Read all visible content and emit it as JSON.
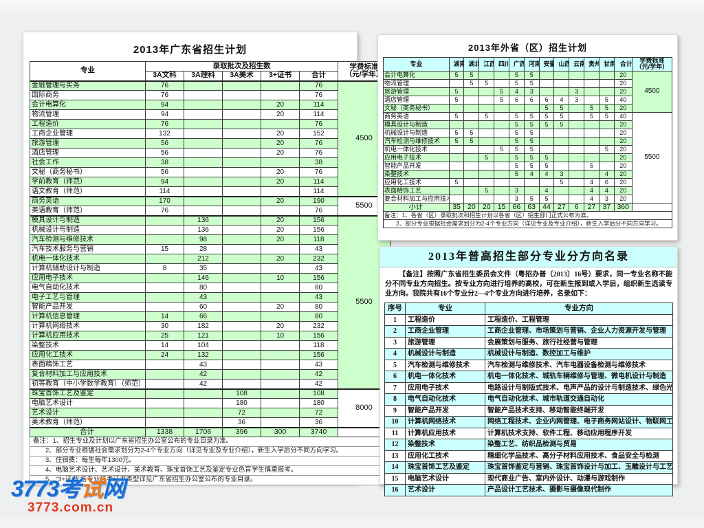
{
  "watermark": {
    "brand_prefix": "3773考",
    "brand_dot": "试",
    "brand_suffix": "网",
    "domain": "3773.com.cn"
  },
  "colors": {
    "row_green": "#ccffcc",
    "header_cyan": "#ccffff",
    "watermark_blue": "#1c6cd0",
    "watermark_red": "#e2391f"
  },
  "guangdong_table": {
    "title": "2013年广东省招生计划",
    "header": {
      "major": "专业",
      "batch_group": "录取批次及招生数",
      "batch_cols": [
        "3A文科",
        "3A理科",
        "3A美术",
        "3+证书",
        "合计"
      ],
      "fee_line1": "学费标准",
      "fee_line2": "（元/学年）"
    },
    "rows": [
      {
        "major": "金融管理与实务",
        "values": [
          "76",
          "",
          "",
          "",
          "76"
        ]
      },
      {
        "major": "国际商务",
        "values": [
          "76",
          "",
          "",
          "",
          "76"
        ]
      },
      {
        "major": "会计电算化",
        "values": [
          "94",
          "",
          "",
          "20",
          "114"
        ]
      },
      {
        "major": "物流管理",
        "values": [
          "94",
          "",
          "",
          "20",
          "114"
        ]
      },
      {
        "major": "工程造价",
        "values": [
          "76",
          "",
          "",
          "",
          "76"
        ]
      },
      {
        "major": "工商企业管理",
        "values": [
          "132",
          "",
          "",
          "20",
          "152"
        ]
      },
      {
        "major": "旅游管理",
        "values": [
          "56",
          "",
          "",
          "20",
          "76"
        ]
      },
      {
        "major": "酒店管理",
        "values": [
          "56",
          "",
          "",
          "20",
          "76"
        ]
      },
      {
        "major": "社会工作",
        "values": [
          "38",
          "",
          "",
          "",
          "38"
        ]
      },
      {
        "major": "文秘（商务秘书）",
        "values": [
          "56",
          "",
          "",
          "20",
          "76"
        ]
      },
      {
        "major": "学前教育（师范）",
        "values": [
          "94",
          "",
          "",
          "20",
          "114"
        ]
      },
      {
        "major": "语文教育（师范）",
        "values": [
          "114",
          "",
          "",
          "",
          "114"
        ]
      },
      {
        "major": "商务英语",
        "values": [
          "170",
          "",
          "",
          "20",
          "190"
        ]
      },
      {
        "major": "英语教育（师范）",
        "values": [
          "76",
          "",
          "",
          "",
          "76"
        ]
      },
      {
        "major": "模具设计与制造",
        "values": [
          "",
          "136",
          "",
          "20",
          "156"
        ]
      },
      {
        "major": "机械设计与制造",
        "values": [
          "",
          "136",
          "",
          "20",
          "156"
        ]
      },
      {
        "major": "汽车检测与维修技术",
        "values": [
          "",
          "98",
          "",
          "20",
          "118"
        ]
      },
      {
        "major": "汽车技术服务与营销",
        "values": [
          "15",
          "28",
          "",
          "",
          "43"
        ]
      },
      {
        "major": "机电一体化技术",
        "values": [
          "",
          "212",
          "",
          "20",
          "232"
        ]
      },
      {
        "major": "计算机辅助设计与制造",
        "values": [
          "8",
          "35",
          "",
          "",
          "43"
        ]
      },
      {
        "major": "应用电子技术",
        "values": [
          "",
          "146",
          "",
          "10",
          "156"
        ]
      },
      {
        "major": "电气自动化技术",
        "values": [
          "",
          "80",
          "",
          "",
          "80"
        ]
      },
      {
        "major": "电子工艺与管理",
        "values": [
          "",
          "43",
          "",
          "",
          "43"
        ]
      },
      {
        "major": "智能产品开发",
        "values": [
          "",
          "60",
          "",
          "20",
          "80"
        ]
      },
      {
        "major": "计算机信息管理",
        "values": [
          "14",
          "66",
          "",
          "",
          "80"
        ]
      },
      {
        "major": "计算机网络技术",
        "values": [
          "30",
          "182",
          "",
          "20",
          "232"
        ]
      },
      {
        "major": "计算机应用技术",
        "values": [
          "25",
          "121",
          "",
          "10",
          "156"
        ]
      },
      {
        "major": "染整技术",
        "values": [
          "14",
          "104",
          "",
          "",
          "118"
        ]
      },
      {
        "major": "应用化工技术",
        "values": [
          "24",
          "132",
          "",
          "",
          "156"
        ]
      },
      {
        "major": "表面精饰工艺",
        "values": [
          "",
          "43",
          "",
          "",
          "43"
        ]
      },
      {
        "major": "复合材料加工与应用技术",
        "values": [
          "",
          "42",
          "",
          "",
          "42"
        ]
      },
      {
        "major": "初等教育（中小学数学教育）（师范）",
        "values": [
          "",
          "42",
          "",
          "",
          "42"
        ]
      },
      {
        "major": "珠宝首饰工艺及鉴定",
        "values": [
          "",
          "",
          "108",
          "",
          "108"
        ]
      },
      {
        "major": "电脑艺术设计",
        "values": [
          "",
          "",
          "180",
          "",
          "180"
        ]
      },
      {
        "major": "艺术设计",
        "values": [
          "",
          "",
          "72",
          "",
          "72"
        ]
      },
      {
        "major": "美术教育（师范）",
        "values": [
          "",
          "",
          "36",
          "",
          "36"
        ]
      }
    ],
    "fee_groups": [
      {
        "label": "4500",
        "start": 0,
        "count": 12
      },
      {
        "label": "5500",
        "start": 12,
        "count": 2
      },
      {
        "label": "5500",
        "start": 14,
        "count": 18
      },
      {
        "label": "8000",
        "start": 32,
        "count": 4
      }
    ],
    "total": {
      "label": "合计",
      "values": [
        "1338",
        "1706",
        "396",
        "300",
        "3740"
      ]
    },
    "notes": [
      "备注：1、招生专业及计划以广东省招生办公室公布的专业目录为准。",
      "2、部分专业根据社会需求划分为2-4个专业方向（详见专业及专业介绍），新生入学后分不同方向学习。",
      "3、住宿费：每生每年1300元。",
      "4、电脑艺术设计、艺术设计、美术教育、珠宝首饰工艺及鉴定专业色盲学生慎重报考。",
      "5、“3+证书”各专业选考证书类型详见广东省招生办公室公布的专业目录。"
    ]
  },
  "province_table": {
    "title": "2013年外省（区）招生计划",
    "header": {
      "major": "专业",
      "provinces": [
        "湖南",
        "湖北",
        "江西",
        "四川",
        "广西",
        "河南",
        "安徽",
        "山西",
        "云南",
        "贵州",
        "甘肃"
      ],
      "total_label": "合计",
      "fee_line1": "学费标准",
      "fee_line2": "（元/学年）"
    },
    "rows": [
      {
        "major": "会计电算化",
        "values": [
          "5",
          "5",
          "",
          "",
          "5",
          "5",
          "",
          "",
          "",
          "",
          "",
          "20"
        ]
      },
      {
        "major": "物流管理",
        "values": [
          "",
          "5",
          "5",
          "",
          "5",
          "5",
          "",
          "",
          "",
          "",
          "",
          "20"
        ]
      },
      {
        "major": "旅游管理",
        "values": [
          "5",
          "",
          "",
          "5",
          "4",
          "3",
          "",
          "",
          "3",
          "",
          "",
          "20"
        ]
      },
      {
        "major": "酒店管理",
        "values": [
          "5",
          "",
          "",
          "5",
          "6",
          "6",
          "6",
          "4",
          "3",
          "",
          "5",
          "40"
        ]
      },
      {
        "major": "文秘（商务秘书）",
        "values": [
          "",
          "",
          "",
          "",
          "",
          "",
          "5",
          "5",
          "",
          "5",
          "5",
          "20"
        ]
      },
      {
        "major": "商务英语",
        "values": [
          "5",
          "",
          "5",
          "",
          "5",
          "5",
          "5",
          "5",
          "",
          "5",
          "5",
          "40"
        ]
      },
      {
        "major": "模具设计与制造",
        "values": [
          "",
          "",
          "",
          "",
          "5",
          "5",
          "5",
          "5",
          "",
          "",
          "",
          "20"
        ]
      },
      {
        "major": "机械设计与制造",
        "values": [
          "5",
          "5",
          "",
          "",
          "5",
          "5",
          "",
          "",
          "",
          "",
          "",
          "20"
        ]
      },
      {
        "major": "汽车检测与维修技术",
        "values": [
          "5",
          "5",
          "",
          "",
          "5",
          "5",
          "",
          "",
          "",
          "",
          "",
          "20"
        ]
      },
      {
        "major": "机电一体化技术",
        "values": [
          "",
          "",
          "",
          "5",
          "5",
          "5",
          "",
          "",
          "",
          "",
          "5",
          "20"
        ]
      },
      {
        "major": "应用电子技术",
        "values": [
          "",
          "",
          "5",
          "",
          "5",
          "5",
          "5",
          "",
          "",
          "",
          "",
          "20"
        ]
      },
      {
        "major": "智能产品开发",
        "values": [
          "",
          "",
          "",
          "",
          "5",
          "5",
          "5",
          "",
          "",
          "5",
          "",
          "20"
        ]
      },
      {
        "major": "染整技术",
        "values": [
          "",
          "",
          "",
          "",
          "5",
          "4",
          "4",
          "3",
          "",
          "",
          "4",
          "20"
        ]
      },
      {
        "major": "应用化工技术",
        "values": [
          "5",
          "",
          "",
          "",
          "",
          "",
          "",
          "5",
          "",
          "4",
          "6",
          "20"
        ]
      },
      {
        "major": "表面精饰工艺",
        "values": [
          "",
          "",
          "5",
          "",
          "3",
          "",
          "4",
          "",
          "",
          "4",
          "4",
          "20"
        ]
      },
      {
        "major": "复合材料加工与应用技术",
        "values": [
          "",
          "",
          "",
          "",
          "3",
          "5",
          "5",
          "",
          "",
          "4",
          "3",
          "20"
        ]
      }
    ],
    "fee_groups": [
      {
        "label": "4500",
        "start": 0,
        "count": 5
      },
      {
        "label": "5500",
        "start": 5,
        "count": 11
      }
    ],
    "total": {
      "label": "小计",
      "values": [
        "35",
        "20",
        "20",
        "15",
        "66",
        "63",
        "44",
        "27",
        "6",
        "27",
        "37",
        "360"
      ]
    },
    "notes": [
      "备注：1、各省（区）录取批次和招生计划以各省（区）招生部门正式公布为准。",
      "2、部分专业根据社会需求划分为2-4个专业方向（详见专业及专业介绍），新生入学后分不同方向学习。"
    ]
  },
  "direction_table": {
    "title": "2013年普高招生部分专业分方向名录",
    "note": "【备注】按照广东省招生委员会文件（粤招办普〔2013〕16号）要求，同一专业名称不能分不同专业方向招生。按专业方向进行培养的高校，可在新生报到或入学后，组织新生选读专业方向。我院共有16个专业分2—4个专业方向进行培养，名录如下：",
    "header": {
      "index": "序号",
      "major": "专业",
      "directions": "专业方向"
    },
    "rows": [
      {
        "index": "1",
        "major": "工程造价",
        "directions": "工程造价、工程管理"
      },
      {
        "index": "2",
        "major": "工商企业管理",
        "directions": "工商企业管理、市场策划与营销、企业人力资源开发与管理"
      },
      {
        "index": "3",
        "major": "旅游管理",
        "directions": "会展策划与服务、旅行社经营与管理"
      },
      {
        "index": "4",
        "major": "机械设计与制造",
        "directions": "机械设计与制造、数控加工与维护"
      },
      {
        "index": "5",
        "major": "汽车检测与维修技术",
        "directions": "汽车检测与维修技术、汽车电器设备检测与维修技术"
      },
      {
        "index": "6",
        "major": "机电一体化技术",
        "directions": "机电一体化技术、城轨车辆维修与管理、微电机设计与制造"
      },
      {
        "index": "7",
        "major": "应用电子技术",
        "directions": "电路设计与制版式技术、电声产品的设计与制造技术、绿色光源LED"
      },
      {
        "index": "8",
        "major": "电气自动化技术",
        "directions": "电气自动化技术、城市轨道交通自动化"
      },
      {
        "index": "9",
        "major": "智能产品开发",
        "directions": "智能产品技术支持、移动智能终端开发"
      },
      {
        "index": "10",
        "major": "计算机网络技术",
        "directions": "网络工程技术、企业内网管理、电子商务网站设计、物联网工程"
      },
      {
        "index": "11",
        "major": "计算机应用技术",
        "directions": "计算机技术支持、软件工程、移动应用程序开发"
      },
      {
        "index": "12",
        "major": "染整技术",
        "directions": "染整工艺、纺织品检测与贸易"
      },
      {
        "index": "13",
        "major": "应用化工技术",
        "directions": "精细化学品技术、高分子材料应用技术、食品安全与检测"
      },
      {
        "index": "14",
        "major": "珠宝首饰工艺及鉴定",
        "directions": "珠宝首饰鉴定与营销、珠宝首饰设计与加工、玉雕设计与工艺"
      },
      {
        "index": "15",
        "major": "电脑艺术设计",
        "directions": "现代商业广告、室内外设计、动漫与游戏制作"
      },
      {
        "index": "16",
        "major": "艺术设计",
        "directions": "产品设计工艺技术、摄影与摄像现代制作"
      }
    ]
  }
}
